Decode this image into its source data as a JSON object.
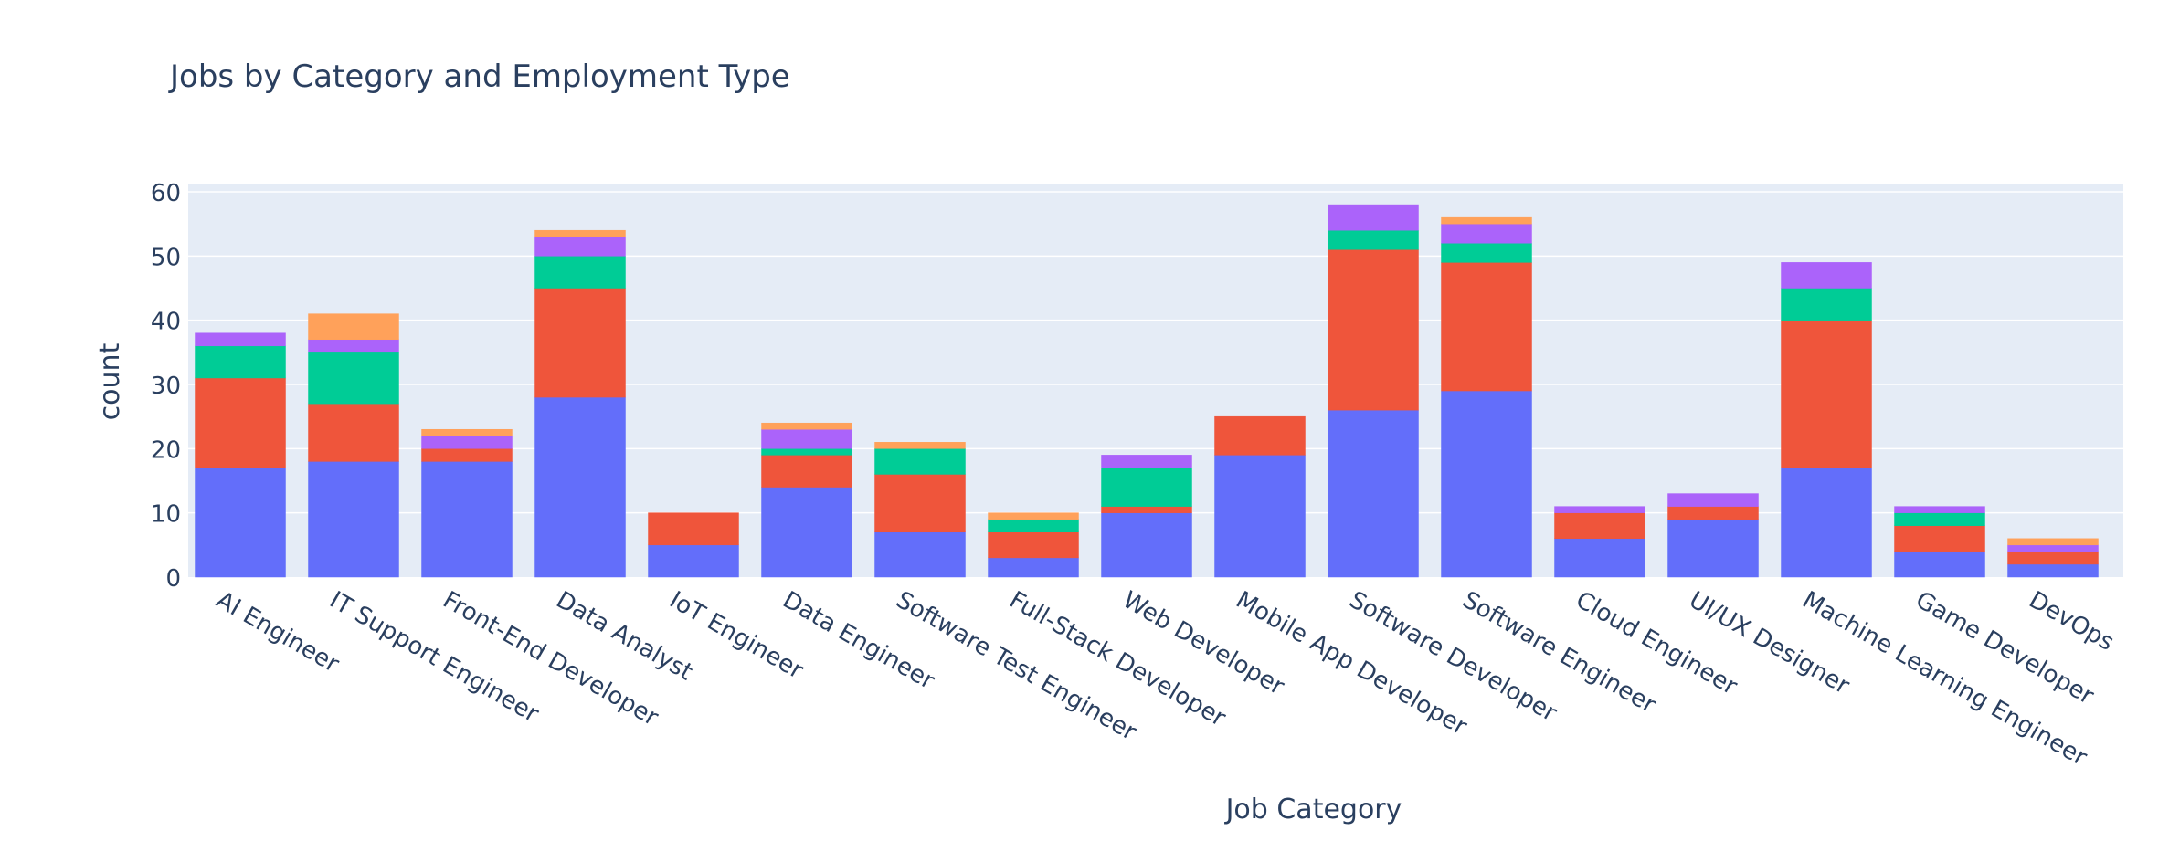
{
  "chart_data": {
    "type": "bar",
    "barmode": "stack",
    "title": "Jobs by Category and Employment Type",
    "xlabel": "Job Category",
    "ylabel": "count",
    "ylim": [
      0,
      60
    ],
    "yticks": [
      0,
      10,
      20,
      30,
      40,
      50,
      60
    ],
    "grid": true,
    "categories": [
      "AI Engineer",
      "IT Support Engineer",
      "Front-End Developer",
      "Data Analyst",
      "IoT Engineer",
      "Data Engineer",
      "Software Test Engineer",
      "Full-Stack Developer",
      "Web Developer",
      "Mobile App Developer",
      "Software Developer",
      "Software Engineer",
      "Cloud Engineer",
      "UI/UX Designer",
      "Machine Learning Engineer",
      "Game Developer",
      "DevOps"
    ],
    "series": [
      {
        "color": "#636efa",
        "values": [
          17,
          18,
          18,
          28,
          5,
          14,
          7,
          3,
          10,
          19,
          26,
          29,
          6,
          9,
          17,
          4,
          2
        ]
      },
      {
        "color": "#ef553b",
        "values": [
          14,
          9,
          2,
          17,
          5,
          5,
          9,
          4,
          1,
          6,
          25,
          20,
          4,
          2,
          23,
          4,
          2
        ]
      },
      {
        "color": "#00cc96",
        "values": [
          5,
          8,
          0,
          5,
          0,
          1,
          4,
          2,
          6,
          0,
          3,
          3,
          0,
          0,
          5,
          2,
          0
        ]
      },
      {
        "color": "#ab63fa",
        "values": [
          2,
          2,
          2,
          3,
          0,
          3,
          0,
          0,
          2,
          0,
          4,
          3,
          1,
          2,
          4,
          1,
          1
        ]
      },
      {
        "color": "#ffa15a",
        "values": [
          0,
          4,
          1,
          1,
          0,
          1,
          1,
          1,
          0,
          0,
          0,
          1,
          0,
          0,
          0,
          0,
          1
        ]
      }
    ]
  }
}
